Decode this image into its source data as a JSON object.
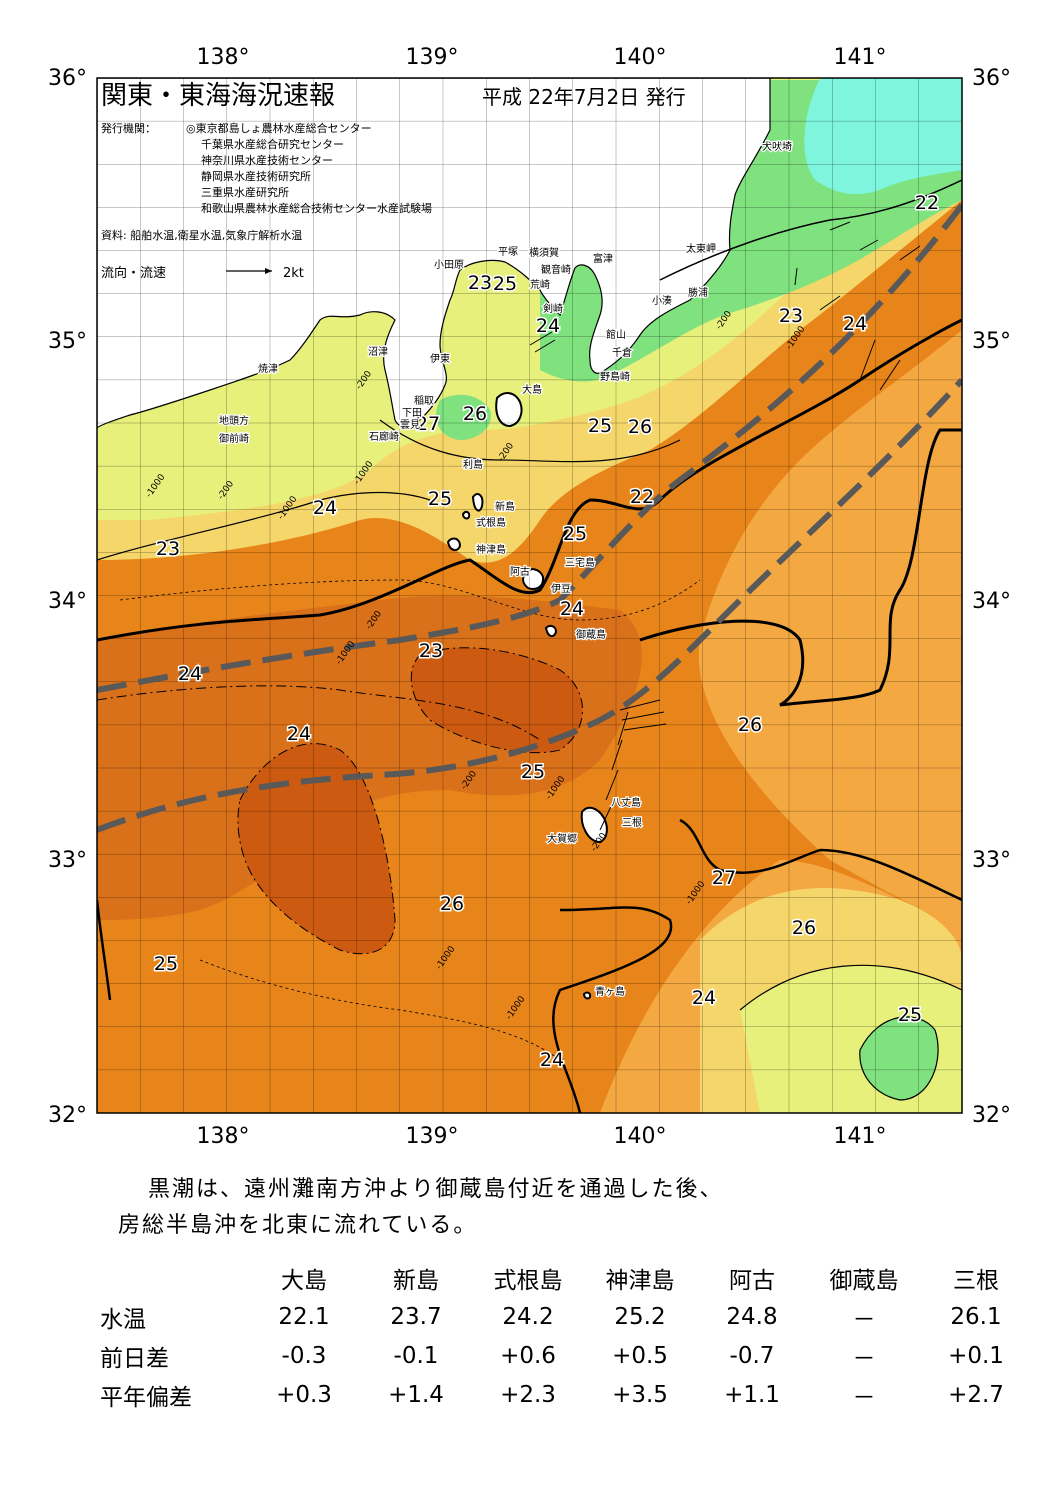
{
  "map": {
    "title": "関東・東海海況速報",
    "issue_date": "平成 22年7月2日 発行",
    "publisher_label": "発行機関：",
    "publishers": [
      "◎東京都島しょ農林水産総合センター",
      "千葉県水産総合研究センター",
      "神奈川県水産技術センター",
      "静岡県水産技術研究所",
      "三重県水産研究所",
      "和歌山県農林水産総合技術センター水産試験場"
    ],
    "sources": "資料: 船舶水温,衛星水温,気象庁解析水温",
    "current_legend": "流向・流速",
    "current_scale": "2kt",
    "lon_labels": [
      "138°",
      "139°",
      "140°",
      "141°"
    ],
    "lat_labels": [
      "36°",
      "35°",
      "34°",
      "33°",
      "32°"
    ],
    "isotherm_labels": [
      "22",
      "23",
      "24",
      "25",
      "26",
      "27",
      "25",
      "24",
      "23",
      "22",
      "24",
      "23",
      "24",
      "24",
      "25",
      "26",
      "27",
      "26",
      "26",
      "25",
      "25",
      "24",
      "26",
      "23",
      "25",
      "24",
      "26",
      "25",
      "24"
    ],
    "depth_labels": [
      "-200",
      "-1000",
      "-200",
      "-1000",
      "-200",
      "-1000",
      "-200",
      "-1000",
      "-200",
      "-1000",
      "-200",
      "-1000",
      "-1000",
      "-1000",
      "-1000",
      "-200"
    ],
    "place_names": [
      "犬吠埼",
      "太東岬",
      "勝浦",
      "小湊",
      "富津",
      "館山",
      "千倉",
      "野島崎",
      "横須賀",
      "観音崎",
      "荒崎",
      "平塚",
      "小田原",
      "剣崎",
      "大島",
      "伊東",
      "沼津",
      "稲取",
      "下田",
      "雲見",
      "石廊崎",
      "焼津",
      "地頭方",
      "御前崎",
      "利島",
      "新島",
      "式根島",
      "神津島",
      "三宅島",
      "阿古",
      "伊豆",
      "御蔵島",
      "八丈島",
      "三根",
      "大賀郷",
      "青ヶ島"
    ]
  },
  "summary": [
    "黒潮は、遠州灘南方沖より御蔵島付近を通過した後、",
    "房総半島沖を北東に流れている。"
  ],
  "table": {
    "columns": [
      "大島",
      "新島",
      "式根島",
      "神津島",
      "阿古",
      "御蔵島",
      "三根"
    ],
    "rows": [
      {
        "label": "水温",
        "values": [
          "22.1",
          "23.7",
          "24.2",
          "25.2",
          "24.8",
          "－",
          "26.1"
        ]
      },
      {
        "label": "前日差",
        "values": [
          "-0.3",
          "-0.1",
          "+0.6",
          "+0.5",
          "-0.7",
          "－",
          "+0.1"
        ]
      },
      {
        "label": "平年偏差",
        "values": [
          "+0.3",
          "+1.4",
          "+2.3",
          "+3.5",
          "+1.1",
          "－",
          "+2.7"
        ]
      }
    ]
  },
  "colors": {
    "t22": "#7fe27f",
    "t23": "#e6f07a",
    "t24": "#f5d66a",
    "t25": "#f4a842",
    "t26": "#e8851a",
    "t27": "#cc5a10",
    "cold": "#7ef5dc",
    "land": "#ffffff",
    "axis_line": "#595959"
  }
}
